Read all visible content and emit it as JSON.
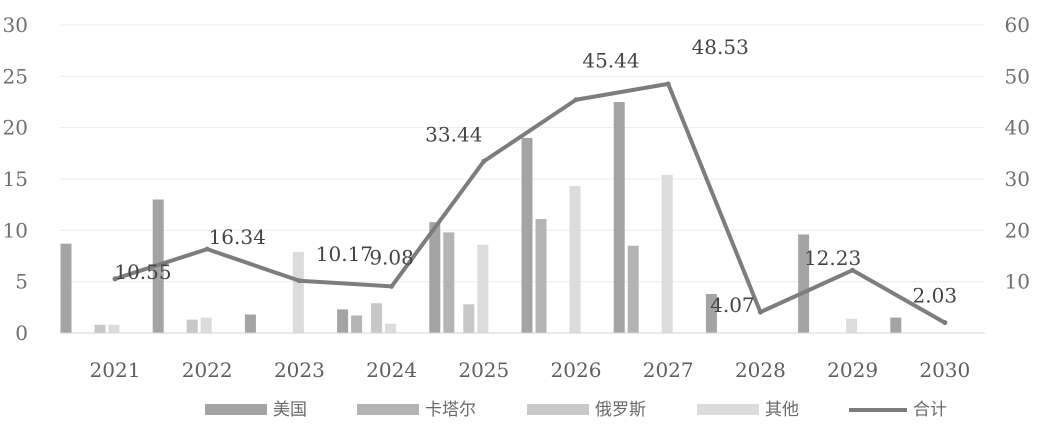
{
  "chart_data": {
    "type": "bar",
    "categories": [
      "2021",
      "2022",
      "2023",
      "2024",
      "2025",
      "2026",
      "2027",
      "2028",
      "2029",
      "2030"
    ],
    "series": [
      {
        "name": "美国",
        "values": [
          8.7,
          13.0,
          1.8,
          2.3,
          10.8,
          19.0,
          22.5,
          3.8,
          9.6,
          1.5
        ],
        "color": "#a4a4a4"
      },
      {
        "name": "卡塔尔",
        "values": [
          0,
          0,
          0,
          1.7,
          9.8,
          11.1,
          8.5,
          0,
          0,
          0
        ],
        "color": "#b4b4b4"
      },
      {
        "name": "俄罗斯",
        "values": [
          0.8,
          1.3,
          0,
          2.9,
          2.8,
          0,
          0,
          0,
          0,
          0
        ],
        "color": "#c8c8c8"
      },
      {
        "name": "其他",
        "values": [
          0.8,
          1.5,
          7.9,
          0.9,
          8.6,
          14.3,
          15.4,
          0,
          1.4,
          0
        ],
        "color": "#dcdcdc"
      }
    ],
    "total": {
      "name": "合计",
      "values": [
        10.55,
        16.34,
        10.17,
        9.08,
        33.44,
        45.44,
        48.53,
        4.07,
        12.23,
        2.03
      ],
      "color": "#7d7d7d"
    },
    "data_labels": [
      "10.55",
      "16.34",
      "10.17",
      "9.08",
      "33.44",
      "45.44",
      "48.53",
      "4.07",
      "12.23",
      "2.03"
    ],
    "y_left": {
      "min": 0,
      "max": 30,
      "ticks": [
        "0",
        "5",
        "10",
        "15",
        "20",
        "25",
        "30"
      ]
    },
    "y_right": {
      "min": 0,
      "max": 60,
      "ticks": [
        "10",
        "20",
        "30",
        "40",
        "50",
        "60"
      ]
    },
    "grid": true,
    "legend_position": "bottom",
    "title": "",
    "xlabel": "",
    "ylabel": ""
  }
}
